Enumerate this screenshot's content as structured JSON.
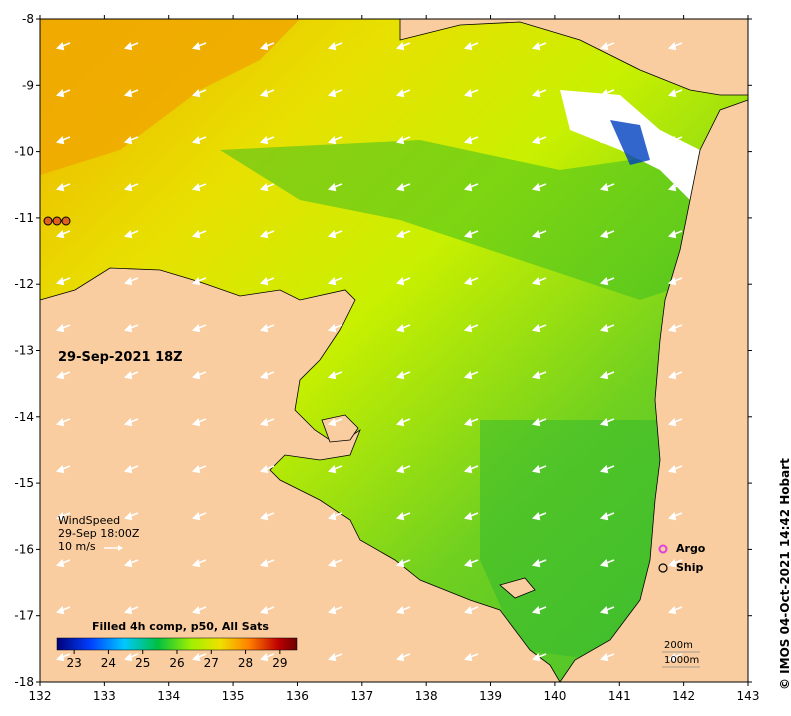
{
  "map": {
    "date_label": "29-Sep-2021 18Z",
    "lon_ticks": [
      "132",
      "133",
      "134",
      "135",
      "136",
      "137",
      "138",
      "139",
      "140",
      "141",
      "142",
      "143"
    ],
    "lat_ticks": [
      "-8",
      "-9",
      "-10",
      "-11",
      "-12",
      "-13",
      "-14",
      "-15",
      "-16",
      "-17",
      "-18"
    ],
    "lon_range": [
      132,
      143
    ],
    "lat_range": [
      -18,
      -8
    ],
    "colors": {
      "land": "#f9cda0",
      "sea_warm": "#f0c000",
      "sea_mid": "#c8f000",
      "sea_cool": "#40c020",
      "coast": "#000000"
    }
  },
  "wind": {
    "title": "WindSpeed",
    "time": "29-Sep 18:00Z",
    "scale": "10 m/s",
    "arrow_icon": "white-arrow-icon"
  },
  "colorbar": {
    "title": "Filled 4h comp, p50, All Sats",
    "ticks": [
      "23",
      "24",
      "25",
      "26",
      "27",
      "28",
      "29"
    ],
    "range": [
      22.5,
      29.5
    ],
    "colors": [
      "#00007a",
      "#0040ff",
      "#00c8ff",
      "#00c040",
      "#a0f000",
      "#f0e000",
      "#ff8000",
      "#c00000",
      "#6a0000"
    ]
  },
  "legend": {
    "argo": "Argo",
    "ship": "Ship",
    "argo_color": "#e040e0",
    "contour_200": "200m",
    "contour_1000": "1000m"
  },
  "credit": "© IMOS 04-Oct-2021 14:42 Hobart"
}
